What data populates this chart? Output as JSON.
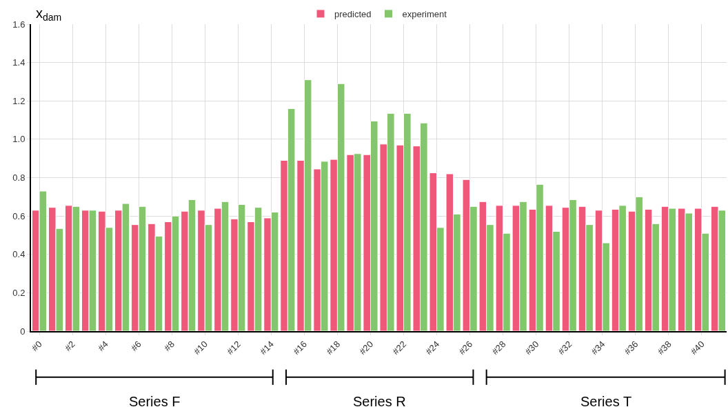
{
  "chart_data": {
    "type": "bar",
    "ylabel": "x$_{dam}$",
    "categories": [
      "#0",
      null,
      "#2",
      null,
      "#4",
      null,
      "#6",
      null,
      "#8",
      null,
      "#10",
      null,
      "#12",
      null,
      "#14",
      null,
      "#16",
      null,
      "#18",
      null,
      "#20",
      null,
      "#22",
      null,
      "#24",
      null,
      "#26",
      null,
      "#28",
      null,
      "#30",
      null,
      "#32",
      null,
      "#34",
      null,
      "#36",
      null,
      "#38",
      null,
      "#40",
      null
    ],
    "series": [
      {
        "name": "predicted",
        "color": "#f0587a",
        "values": [
          0.63,
          0.645,
          0.655,
          0.63,
          0.625,
          0.63,
          0.555,
          0.56,
          0.57,
          0.625,
          0.63,
          0.64,
          0.585,
          0.57,
          0.59,
          0.89,
          0.89,
          0.845,
          0.895,
          0.92,
          0.92,
          0.975,
          0.97,
          0.965,
          0.825,
          0.82,
          0.79,
          0.675,
          0.655,
          0.655,
          0.635,
          0.655,
          0.645,
          0.65,
          0.63,
          0.635,
          0.625,
          0.635,
          0.65,
          0.64,
          0.64,
          0.65
        ]
      },
      {
        "name": "experiment",
        "color": "#84c66a",
        "values": [
          0.73,
          0.535,
          0.65,
          0.63,
          0.54,
          0.665,
          0.65,
          0.495,
          0.6,
          0.685,
          0.555,
          0.675,
          0.66,
          0.645,
          0.62,
          1.16,
          1.31,
          0.885,
          1.29,
          0.925,
          1.095,
          1.135,
          1.135,
          1.085,
          0.54,
          0.61,
          0.65,
          0.555,
          0.51,
          0.675,
          0.765,
          0.52,
          0.685,
          0.555,
          0.46,
          0.655,
          0.7,
          0.56,
          0.64,
          0.615,
          0.51,
          0.63
        ]
      }
    ],
    "ylim": [
      0,
      1.6
    ],
    "yticks": [
      0,
      0.2,
      0.4,
      0.6,
      0.8,
      {
        "value": 1,
        "label": "1.0"
      },
      1.2,
      1.4,
      1.6
    ],
    "grid": true,
    "legend": "top",
    "annotations": [
      "Series F",
      "Series R",
      "Series T"
    ]
  }
}
